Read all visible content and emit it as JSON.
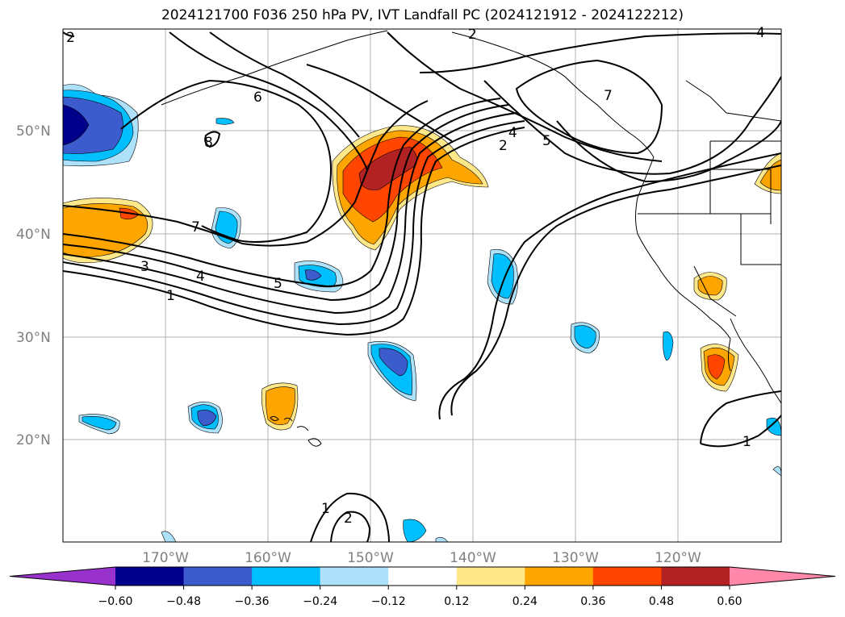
{
  "title": "2024121700 F036 250 hPa PV, IVT Landfall PC (2024121912 - 2024122212)",
  "map": {
    "lat_labels": [
      "50°N",
      "40°N",
      "30°N",
      "20°N"
    ],
    "lon_labels": [
      "170°W",
      "160°W",
      "150°W",
      "140°W",
      "130°W",
      "120°W"
    ],
    "contour_labels": [
      "6",
      "7",
      "3",
      "4",
      "5",
      "1",
      "8",
      "2",
      "4",
      "5",
      "2",
      "7",
      "1",
      "1",
      "2",
      "2",
      "4"
    ]
  },
  "colorbar": {
    "colors": [
      "#9932cc",
      "#00008b",
      "#3c5ccd",
      "#00bfff",
      "#aee2fa",
      "#ffffff",
      "#ffe88a",
      "#ffa500",
      "#ff4500",
      "#b22222",
      "#ff88aa"
    ],
    "tick_labels": [
      "−0.60",
      "−0.48",
      "−0.36",
      "−0.24",
      "−0.12",
      "0.12",
      "0.24",
      "0.36",
      "0.48",
      "0.60"
    ]
  }
}
